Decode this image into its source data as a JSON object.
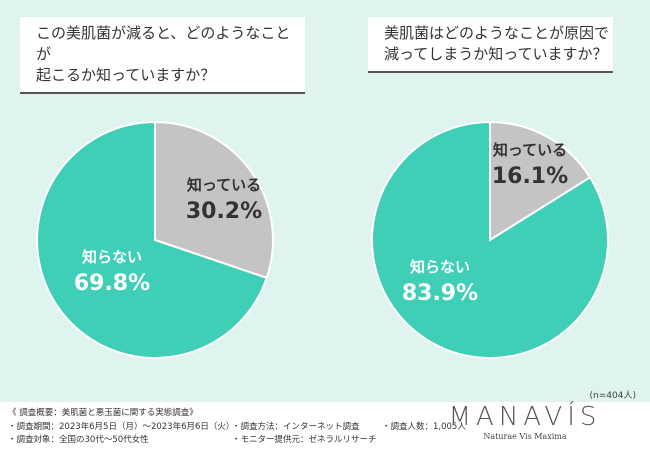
{
  "chart_data": [
    {
      "type": "pie",
      "title": "この美肌菌が減ると、どのようなことが起こるか知っていますか？",
      "slices": [
        {
          "label": "知っている",
          "value": 30.2,
          "display": "30.2%",
          "color": "#c4c4c4"
        },
        {
          "label": "知らない",
          "value": 69.8,
          "display": "69.8%",
          "color": "#3ecfb6"
        }
      ]
    },
    {
      "type": "pie",
      "title": "美肌菌はどのようなことが原因で減ってしまうか知っていますか？",
      "slices": [
        {
          "label": "知っている",
          "value": 16.1,
          "display": "16.1%",
          "color": "#c4c4c4"
        },
        {
          "label": "知らない",
          "value": 83.9,
          "display": "83.9%",
          "color": "#3ecfb6"
        }
      ]
    }
  ],
  "titles": {
    "q1_line1": "この美肌菌が減ると、どのようなことが",
    "q1_line2": "起こるか知っていますか？",
    "q2_line1": "美肌菌はどのようなことが原因で",
    "q2_line2": "減ってしまうか知っていますか？"
  },
  "sample": "(n=404人)",
  "footer": {
    "overview": "《 調査概要：美肌菌と悪玉菌に関する実態調査》",
    "period": "・調査期間：2023年6月5日（月）～2023年6月6日（火）",
    "target": "・調査対象：全国の30代～50代女性",
    "method": "・調査方法：インターネット調査",
    "provider": "・モニター提供元：ゼネラルリサーチ",
    "count": "・調査人数：1,005人"
  },
  "logo": {
    "name": "MANAVÍS",
    "tagline": "Naturae Vis Maxima"
  }
}
